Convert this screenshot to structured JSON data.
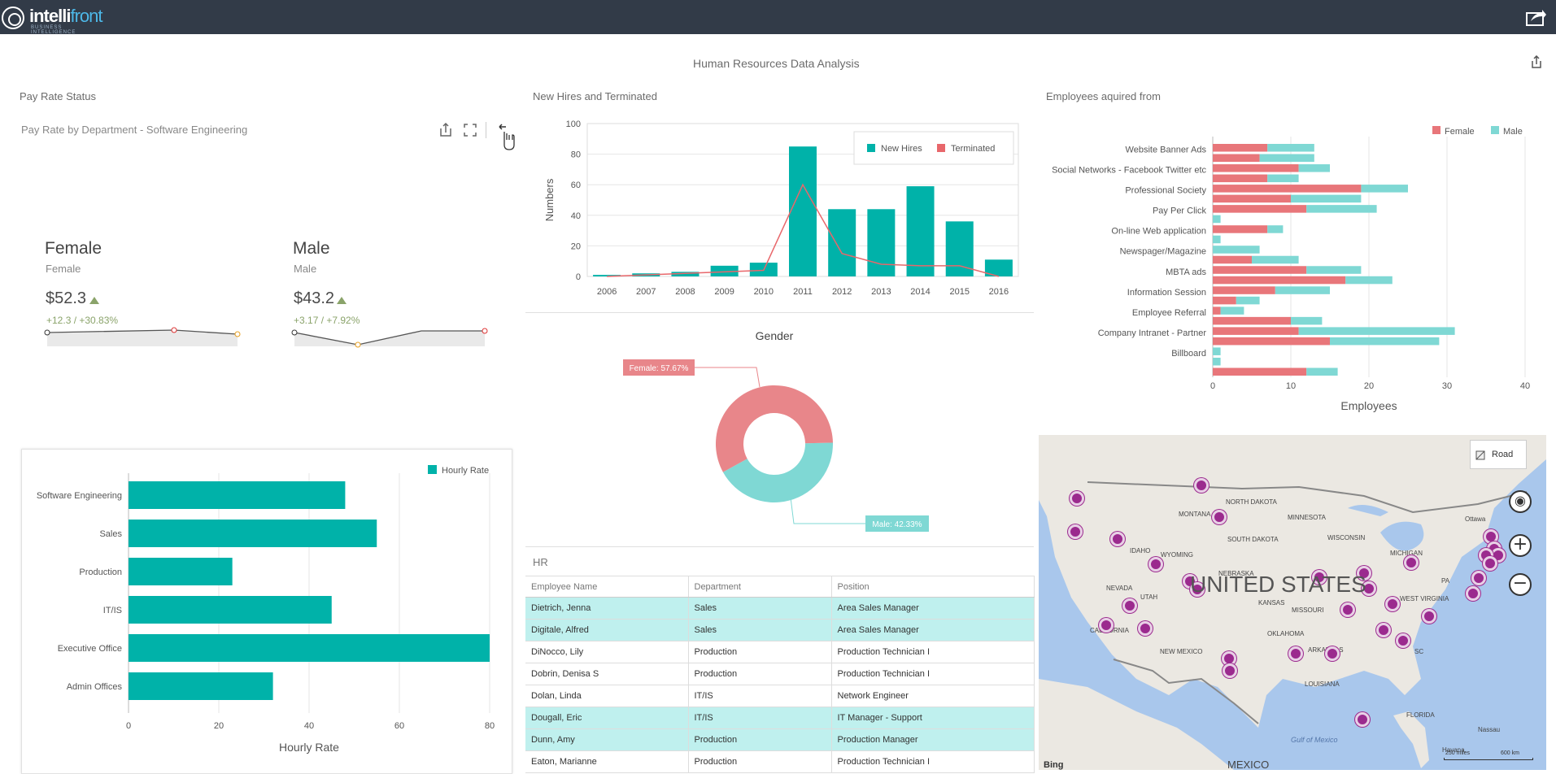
{
  "app": {
    "logo_text": "intelli",
    "logo_text2": "front",
    "logo_sub": "BUSINESS INTELLIGENCE"
  },
  "dashboard_title": "Human Resources Data Analysis",
  "pay_rate": {
    "title": "Pay Rate Status",
    "subtitle": "Pay Rate by Department - Software Engineering",
    "cards": [
      {
        "title": "Female",
        "subtitle": "Female",
        "value": "$52.3",
        "change": "+12.3 / +30.83%",
        "trend": "up"
      },
      {
        "title": "Male",
        "subtitle": "Male",
        "value": "$43.2",
        "change": "+3.17 / +7.92%",
        "trend": "up"
      }
    ]
  },
  "hourly_chart": {
    "legend": "Hourly Rate",
    "xlabel": "Hourly Rate",
    "categories": [
      "Software Engineering",
      "Sales",
      "Production",
      "IT/IS",
      "Executive Office",
      "Admin Offices"
    ],
    "values": [
      48,
      55,
      23,
      45,
      80,
      32
    ],
    "ticks": [
      "0",
      "20",
      "40",
      "60",
      "80"
    ],
    "xlim": [
      0,
      80
    ],
    "color": "#00b2a9"
  },
  "hires_chart": {
    "title": "New Hires and Terminated",
    "ylabel": "Numbers",
    "years": [
      "2006",
      "2007",
      "2008",
      "2009",
      "2010",
      "2011",
      "2012",
      "2013",
      "2014",
      "2015",
      "2016"
    ],
    "new_hires": [
      1,
      2,
      3,
      7,
      9,
      85,
      44,
      44,
      59,
      36,
      11
    ],
    "terminated": [
      0,
      1,
      2,
      3,
      4,
      60,
      15,
      8,
      7,
      7,
      0
    ],
    "ticks": [
      "0",
      "20",
      "40",
      "60",
      "80",
      "100"
    ],
    "ylim": [
      0,
      100
    ],
    "legend": [
      "New Hires",
      "Terminated"
    ],
    "colors": [
      "#00b2a9",
      "#e8676b"
    ]
  },
  "gender": {
    "title": "Gender",
    "female_label": "Female: 57.67%",
    "male_label": "Male: 42.33%",
    "female": 57.67,
    "male": 42.33,
    "colors": [
      "#e8868a",
      "#7fd8d4"
    ]
  },
  "acquired": {
    "title": "Employees aquired from",
    "xlabel": "Employees",
    "legend": [
      "Female",
      "Male"
    ],
    "labels": [
      "Website Banner Ads",
      "Social Networks - Facebook Twitter etc",
      "Professional Society",
      "Pay Per Click",
      "On-line Web application",
      "Newspager/Magazine",
      "MBTA ads",
      "Information Session",
      "Employee Referral",
      "Company Intranet - Partner",
      "Billboard"
    ],
    "ticks": [
      "0",
      "10",
      "20",
      "30",
      "40"
    ],
    "xlim": [
      0,
      40
    ],
    "female": [
      7,
      6,
      11,
      7,
      19,
      10,
      12,
      0,
      7,
      0,
      0,
      5,
      12,
      17,
      8,
      3,
      1,
      10,
      11,
      15,
      0,
      0,
      12
    ],
    "male": [
      6,
      7,
      4,
      4,
      6,
      9,
      9,
      1,
      2,
      1,
      6,
      6,
      7,
      6,
      7,
      3,
      3,
      4,
      20,
      14,
      1,
      1,
      4
    ],
    "colors": [
      "#e8767a",
      "#7fd8d4"
    ]
  },
  "hr": {
    "title": "HR",
    "columns": [
      "Employee Name",
      "Department",
      "Position"
    ],
    "rows": [
      [
        "Dietrich, Jenna",
        "Sales",
        "Area Sales Manager"
      ],
      [
        "Digitale, Alfred",
        "Sales",
        "Area Sales Manager"
      ],
      [
        "DiNocco, Lily",
        "Production",
        "Production Technician I"
      ],
      [
        "Dobrin, Denisa S",
        "Production",
        "Production Technician I"
      ],
      [
        "Dolan, Linda",
        "IT/IS",
        "Network Engineer"
      ],
      [
        "Dougall, Eric",
        "IT/IS",
        "IT Manager - Support"
      ],
      [
        "Dunn, Amy",
        "Production",
        "Production Manager"
      ],
      [
        "Eaton, Marianne",
        "Production",
        "Production Technician I"
      ]
    ]
  },
  "map": {
    "style_label": "Road",
    "country": "UNITED STATES",
    "bottom": "MEXICO",
    "ocean": "Gulf of Mexico",
    "bing": "Bing",
    "scale1": "250 miles",
    "scale2": "600 km",
    "places": [
      "NORTH DAKOTA",
      "MONTANA",
      "MINNESOTA",
      "SOUTH DAKOTA",
      "WISCONSIN",
      "IDAHO",
      "WYOMING",
      "MICHIGAN",
      "NEBRASKA",
      "NEVADA",
      "UTAH",
      "KANSAS",
      "MISSOURI",
      "CALIFORNIA",
      "OKLAHOMA",
      "ARKANSAS",
      "NEW MEXICO",
      "LOUISIANA",
      "FLORIDA",
      "Ottawa",
      "Nassau",
      "Havana",
      "WEST VIRGINIA",
      "PA",
      "SC"
    ]
  }
}
